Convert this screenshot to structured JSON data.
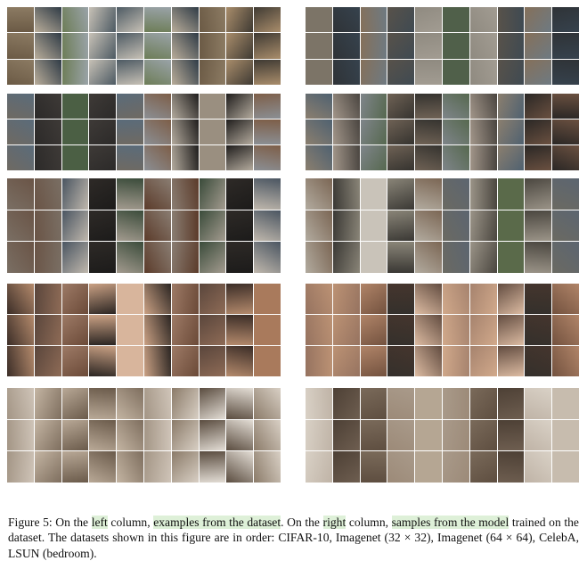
{
  "figure": {
    "columns": [
      {
        "name": "left",
        "panels": [
          {
            "dataset": "CIFAR-10",
            "rows": 3,
            "cols": 10,
            "palette": [
              "#6b5a45",
              "#8c7b63",
              "#4d5a63",
              "#b9ad9a",
              "#3f3a33",
              "#9aa3a8",
              "#6d7d57",
              "#a98d6b",
              "#2f3b46",
              "#c7c1b6"
            ]
          },
          {
            "dataset": "Imagenet (32 × 32)",
            "rows": 3,
            "cols": 10,
            "palette": [
              "#3e3a37",
              "#6f6a62",
              "#9a8f80",
              "#5a6b7a",
              "#2c2a29",
              "#b3aa9d",
              "#7d5e48",
              "#4b5f44",
              "#8b8f94",
              "#1f1d1c"
            ]
          },
          {
            "dataset": "Imagenet (64 × 64)",
            "rows": 3,
            "cols": 10,
            "palette": [
              "#5b3b2a",
              "#2e2a27",
              "#7a6f64",
              "#a39b8f",
              "#3a4b3a",
              "#6a5446",
              "#1c1b1a",
              "#8a7d72",
              "#4a5561",
              "#c0b8ad"
            ]
          },
          {
            "dataset": "CelebA",
            "rows": 3,
            "cols": 10,
            "palette": [
              "#a97a5c",
              "#6b4a38",
              "#caa184",
              "#3b2d27",
              "#8e6b56",
              "#d8b59c",
              "#5a463c",
              "#b48a6c",
              "#2b2522",
              "#9d7a66"
            ]
          },
          {
            "dataset": "LSUN (bedroom)",
            "rows": 3,
            "cols": 10,
            "palette": [
              "#b9a997",
              "#8b7b69",
              "#d8cfc4",
              "#6a5a4a",
              "#a39585",
              "#e3ddd5",
              "#7e6e5e",
              "#c4b5a3",
              "#5a4c3f",
              "#cfc4b8"
            ]
          }
        ]
      },
      {
        "name": "right",
        "panels": [
          {
            "dataset": "CIFAR-10",
            "rows": 3,
            "cols": 10,
            "palette": [
              "#58524a",
              "#7c7467",
              "#3f4a52",
              "#8f8a80",
              "#2f3337",
              "#6e7a82",
              "#50604a",
              "#85705a",
              "#36424d",
              "#a29c92"
            ]
          },
          {
            "dataset": "Imagenet (32 × 32)",
            "rows": 3,
            "cols": 10,
            "palette": [
              "#4a4540",
              "#6f6255",
              "#8b7f6f",
              "#4f6170",
              "#35332f",
              "#a2968a",
              "#6a5040",
              "#56684f",
              "#7f858a",
              "#2a2725"
            ]
          },
          {
            "dataset": "Imagenet (64 × 64)",
            "rows": 3,
            "cols": 10,
            "palette": [
              "#6b6a62",
              "#4a463f",
              "#8a8578",
              "#b2ab9f",
              "#5a6a4a",
              "#7b6654",
              "#3a3834",
              "#9b9488",
              "#5c6570",
              "#c9c3b9"
            ]
          },
          {
            "dataset": "CelebA",
            "rows": 3,
            "cols": 10,
            "palette": [
              "#b08468",
              "#73523f",
              "#d1a98b",
              "#45352d",
              "#967360",
              "#dcbba2",
              "#624c40",
              "#bc9274",
              "#34302c",
              "#a6836e"
            ]
          },
          {
            "dataset": "LSUN (bedroom)",
            "rows": 3,
            "cols": 10,
            "palette": [
              "#9c8a78",
              "#7a6a5a",
              "#c7bcae",
              "#5e4e40",
              "#a99a8a",
              "#d9d1c6",
              "#6e5e50",
              "#b5a693",
              "#4d4035",
              "#bfb3a6"
            ]
          }
        ]
      }
    ]
  },
  "caption": {
    "p1": "Figure 5: On the ",
    "left": "left",
    "p2": " column, ",
    "examples": "examples from the dataset",
    "p3": ". On the ",
    "right": "right",
    "p4": " column, ",
    "samples": "samples from the model",
    "p5": " trained on the dataset. The datasets shown in this figure are in order: CIFAR-10, Imagenet (32 × 32), Imagenet (64 × 64), CelebA, LSUN (bedroom)."
  }
}
